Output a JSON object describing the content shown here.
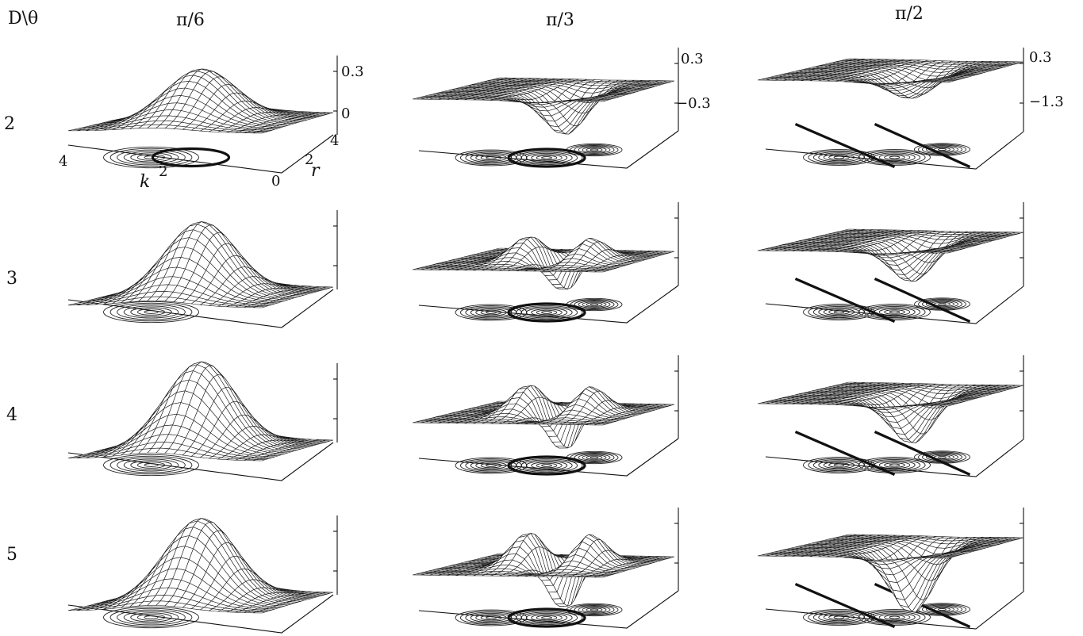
{
  "corner_label": "D\\θ",
  "chart_data": {
    "type": "surface-grid",
    "column_headers": [
      "π/6",
      "π/3",
      "π/2"
    ],
    "row_labels": [
      "2",
      "3",
      "4",
      "5"
    ],
    "axis_labels": {
      "k": "k",
      "r": "r"
    },
    "k_ticks": [
      "4",
      "2"
    ],
    "r_ticks": [
      "0",
      "2",
      "4"
    ],
    "z_ticks": [
      [
        "0.3",
        "0"
      ],
      [
        "0.3",
        "−0.3"
      ],
      [
        "0.3",
        "−1.3"
      ]
    ],
    "panels": [
      {
        "row": "2",
        "col": "π/6",
        "shape": "hump",
        "amplitude": 0.6,
        "sub_ripple": true,
        "thick_contour": true
      },
      {
        "row": "2",
        "col": "π/3",
        "shape": "dip",
        "amplitude": 0.5,
        "thick_contour": true
      },
      {
        "row": "2",
        "col": "π/2",
        "shape": "dip-shallow",
        "amplitude": 0.3,
        "nodal_lines": true
      },
      {
        "row": "3",
        "col": "π/6",
        "shape": "hump",
        "amplitude": 0.85
      },
      {
        "row": "3",
        "col": "π/3",
        "shape": "double-hump-dip",
        "amplitude": 0.5,
        "thick_contour": true
      },
      {
        "row": "3",
        "col": "π/2",
        "shape": "dip",
        "amplitude": 0.45,
        "nodal_lines": true
      },
      {
        "row": "4",
        "col": "π/6",
        "shape": "hump",
        "amplitude": 1.0
      },
      {
        "row": "4",
        "col": "π/3",
        "shape": "double-hump-dip",
        "amplitude": 0.6,
        "thick_contour": true
      },
      {
        "row": "4",
        "col": "π/2",
        "shape": "dip",
        "amplitude": 0.55,
        "nodal_lines": true
      },
      {
        "row": "5",
        "col": "π/6",
        "shape": "hump",
        "amplitude": 0.95
      },
      {
        "row": "5",
        "col": "π/3",
        "shape": "double-hump-dip",
        "amplitude": 0.7,
        "thick_contour": true
      },
      {
        "row": "5",
        "col": "π/2",
        "shape": "dip",
        "amplitude": 0.75,
        "nodal_lines": true
      }
    ]
  }
}
